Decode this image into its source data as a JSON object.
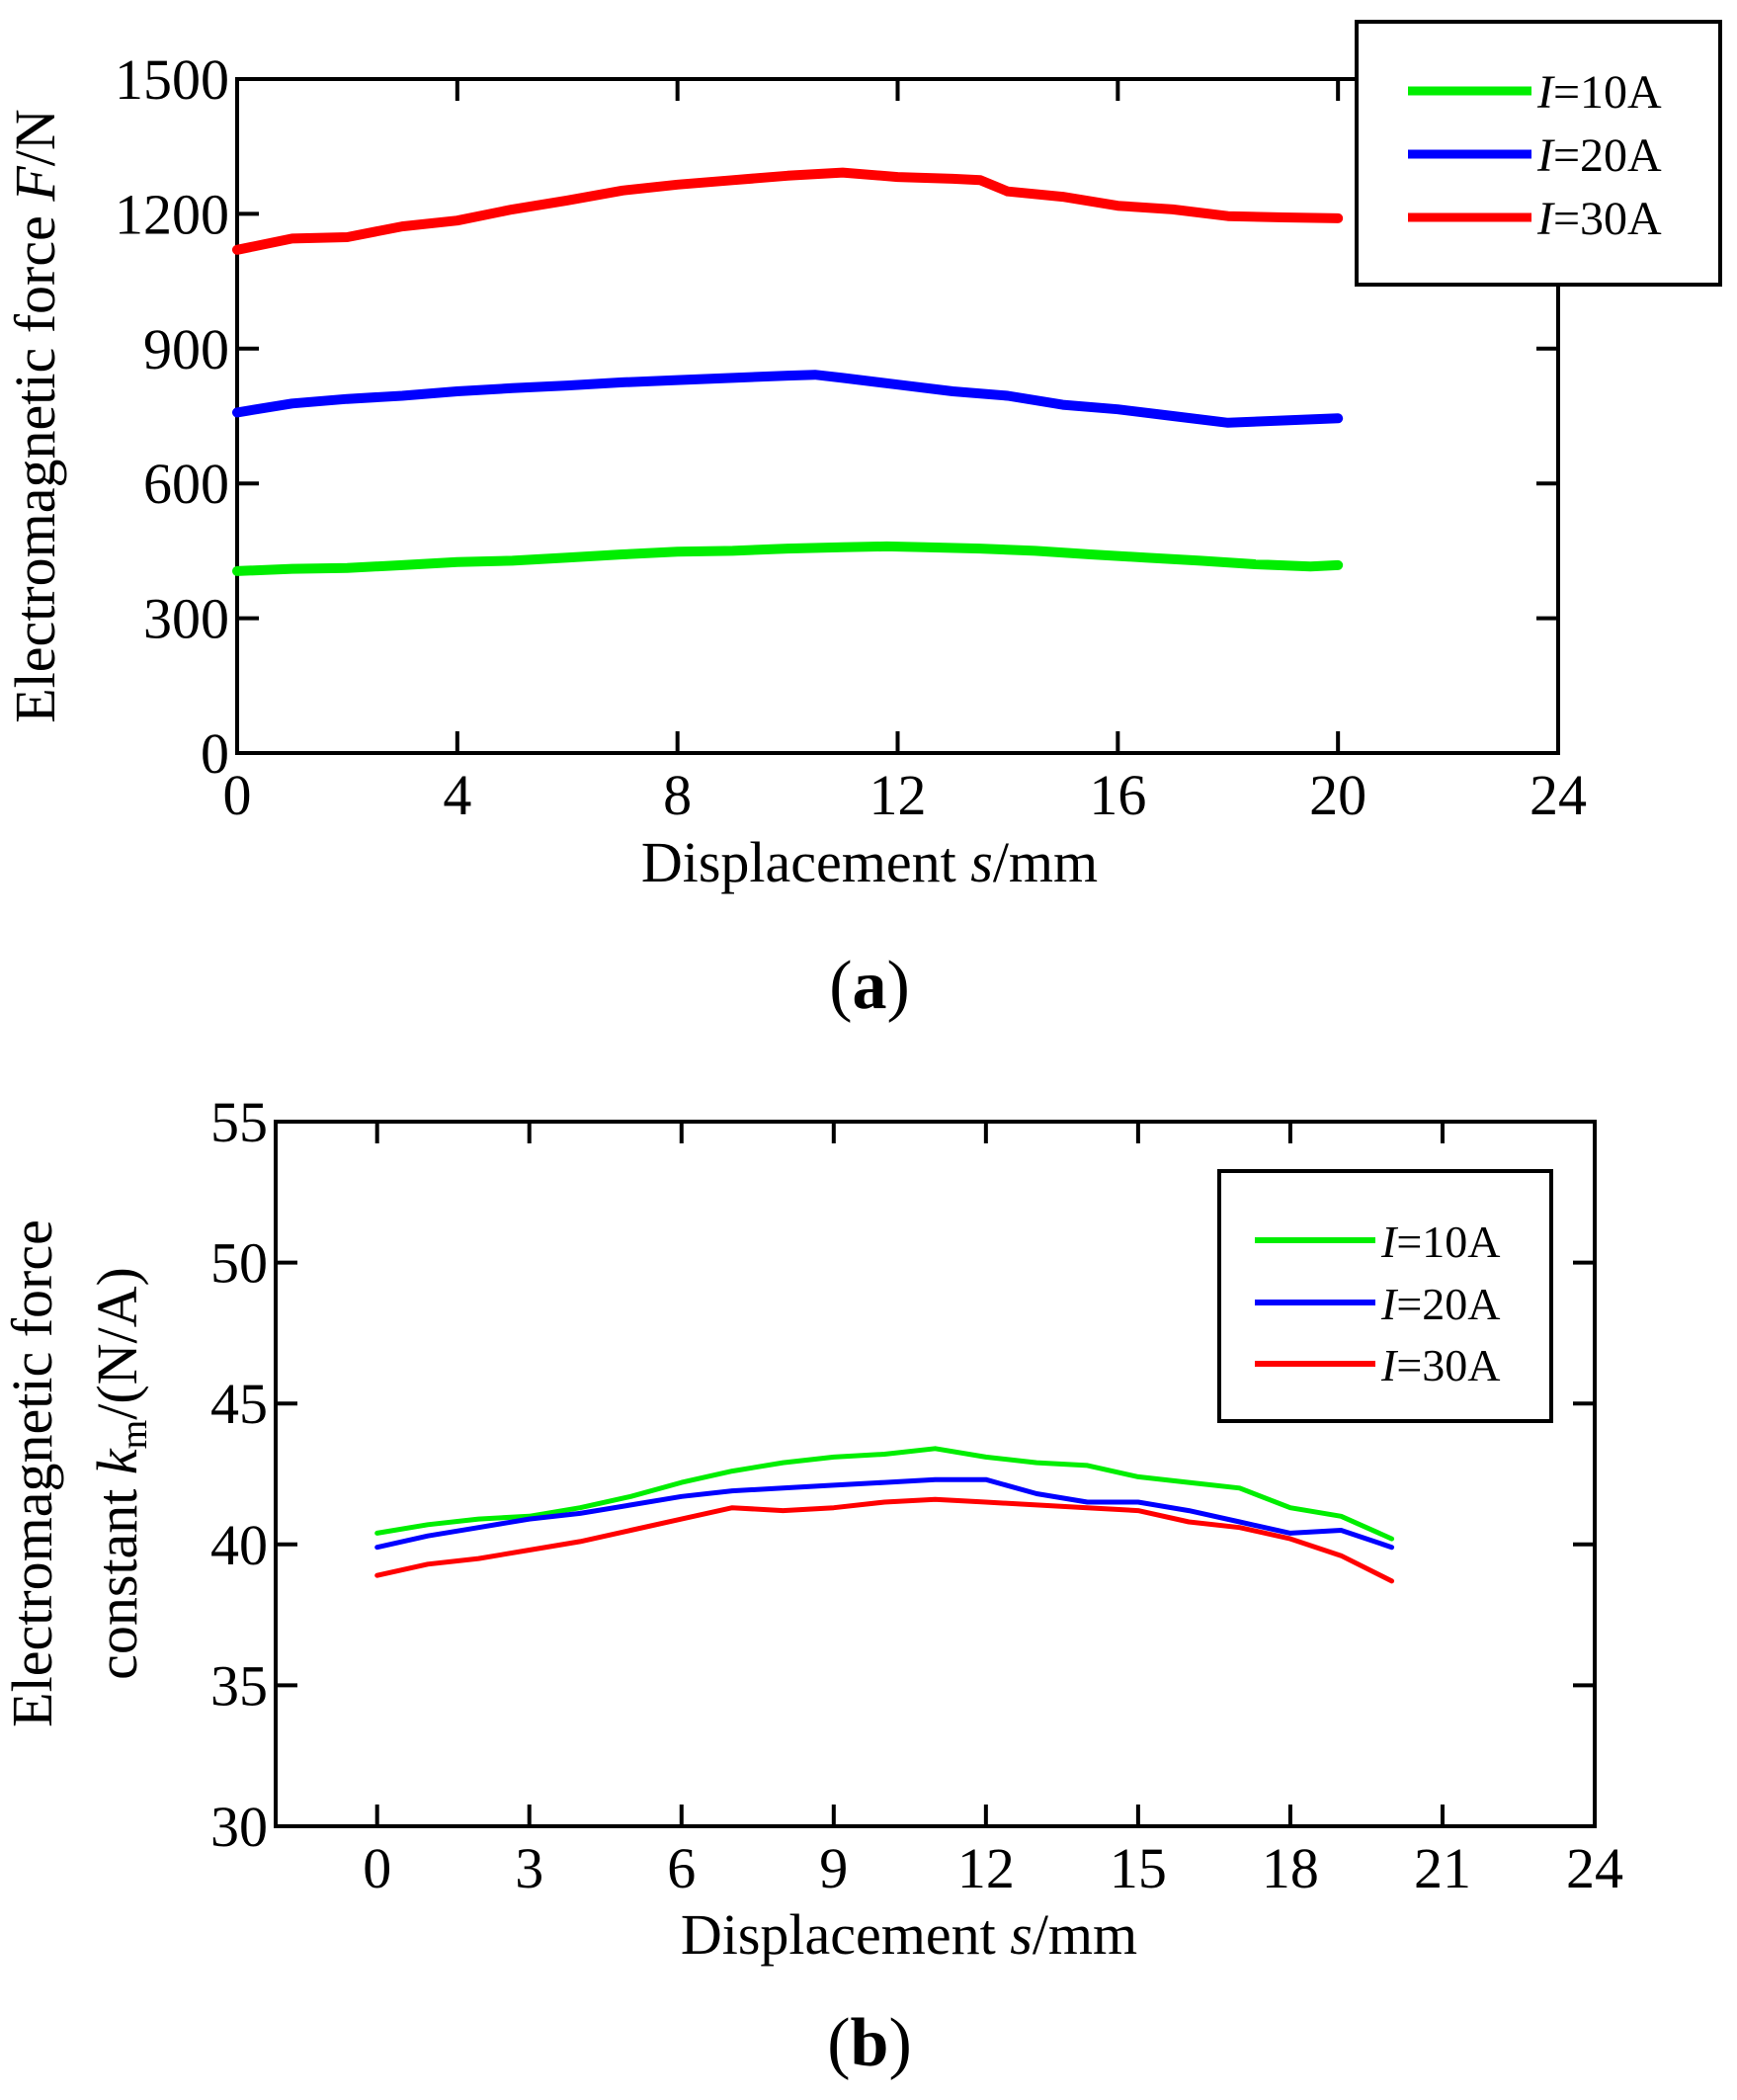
{
  "chart_data": [
    {
      "id": "a",
      "type": "line",
      "caption": "a",
      "ylabel": "Electromagnetic force ",
      "ylabel_var": "F",
      "ylabel_unit": "/N",
      "xlabel": "Displacement ",
      "xlabel_var": "s",
      "xlabel_unit": "/mm",
      "xlim": [
        0,
        24
      ],
      "ylim": [
        0,
        1500
      ],
      "xticks": [
        0,
        4,
        8,
        12,
        16,
        20,
        24
      ],
      "yticks": [
        0,
        300,
        600,
        900,
        1200,
        1500
      ],
      "legend_position": "top-right",
      "series": [
        {
          "name": "I=10A",
          "var": "I",
          "suffix": "=10A",
          "color": "#00ee00",
          "x": [
            0,
            1,
            2,
            3,
            4,
            5,
            6,
            7,
            8,
            9,
            10,
            11,
            11.8,
            12.5,
            13.5,
            14.5,
            15.5,
            16.5,
            17.5,
            18.5,
            19.5,
            20
          ],
          "y": [
            405,
            410,
            412,
            418,
            425,
            428,
            435,
            442,
            448,
            450,
            455,
            458,
            460,
            458,
            455,
            450,
            442,
            435,
            428,
            420,
            415,
            418
          ]
        },
        {
          "name": "I=20A",
          "var": "I",
          "suffix": "=20A",
          "color": "#0000ff",
          "x": [
            0,
            1,
            2,
            3,
            4,
            5,
            6,
            7,
            8,
            9,
            10,
            10.5,
            11,
            12,
            13,
            14,
            15,
            16,
            17,
            18,
            19,
            20
          ],
          "y": [
            758,
            778,
            788,
            795,
            805,
            812,
            818,
            825,
            830,
            835,
            840,
            842,
            835,
            820,
            805,
            795,
            775,
            765,
            750,
            735,
            740,
            745
          ]
        },
        {
          "name": "I=30A",
          "var": "I",
          "suffix": "=30A",
          "color": "#ff0000",
          "x": [
            0,
            1,
            2,
            3,
            4,
            5,
            6,
            7,
            8,
            9,
            10,
            11,
            12,
            13,
            13.5,
            14,
            15,
            16,
            17,
            18,
            19,
            20
          ],
          "y": [
            1120,
            1145,
            1148,
            1172,
            1185,
            1210,
            1230,
            1252,
            1265,
            1275,
            1285,
            1292,
            1282,
            1278,
            1275,
            1250,
            1238,
            1218,
            1210,
            1195,
            1192,
            1190
          ]
        }
      ]
    },
    {
      "id": "b",
      "type": "line",
      "caption": "b",
      "ylabel_line1": "Electromagnetic force",
      "ylabel_line2_pre": "constant ",
      "ylabel_var": "k",
      "ylabel_sub": "m",
      "ylabel_unit": "/(N/A)",
      "xlabel": "Displacement ",
      "xlabel_var": "s",
      "xlabel_unit": "/mm",
      "xlim": [
        -2,
        24
      ],
      "ylim": [
        30,
        55
      ],
      "xticks": [
        0,
        3,
        6,
        9,
        12,
        15,
        18,
        21,
        24
      ],
      "yticks": [
        30,
        35,
        40,
        45,
        50,
        55
      ],
      "legend_position": "top-right",
      "series": [
        {
          "name": "I=10A",
          "var": "I",
          "suffix": "=10A",
          "color": "#00ee00",
          "x": [
            0,
            1,
            2,
            3,
            4,
            5,
            6,
            7,
            8,
            9,
            10,
            11,
            12,
            13,
            14,
            15,
            16,
            17,
            18,
            19,
            20
          ],
          "y": [
            40.4,
            40.7,
            40.9,
            41.0,
            41.3,
            41.7,
            42.2,
            42.6,
            42.9,
            43.1,
            43.2,
            43.4,
            43.1,
            42.9,
            42.8,
            42.4,
            42.2,
            42.0,
            41.3,
            41.0,
            40.2
          ]
        },
        {
          "name": "I=20A",
          "var": "I",
          "suffix": "=20A",
          "color": "#0000ff",
          "x": [
            0,
            1,
            2,
            3,
            4,
            5,
            6,
            7,
            8,
            9,
            10,
            11,
            12,
            13,
            14,
            15,
            16,
            17,
            18,
            19,
            20
          ],
          "y": [
            39.9,
            40.3,
            40.6,
            40.9,
            41.1,
            41.4,
            41.7,
            41.9,
            42.0,
            42.1,
            42.2,
            42.3,
            42.3,
            41.8,
            41.5,
            41.5,
            41.2,
            40.8,
            40.4,
            40.5,
            39.9
          ]
        },
        {
          "name": "I=30A",
          "var": "I",
          "suffix": "=30A",
          "color": "#ff0000",
          "x": [
            0,
            1,
            2,
            3,
            4,
            5,
            6,
            7,
            8,
            9,
            10,
            11,
            12,
            13,
            14,
            15,
            16,
            17,
            18,
            19,
            20
          ],
          "y": [
            38.9,
            39.3,
            39.5,
            39.8,
            40.1,
            40.5,
            40.9,
            41.3,
            41.2,
            41.3,
            41.5,
            41.6,
            41.5,
            41.4,
            41.3,
            41.2,
            40.8,
            40.6,
            40.2,
            39.6,
            38.7
          ]
        }
      ]
    }
  ]
}
